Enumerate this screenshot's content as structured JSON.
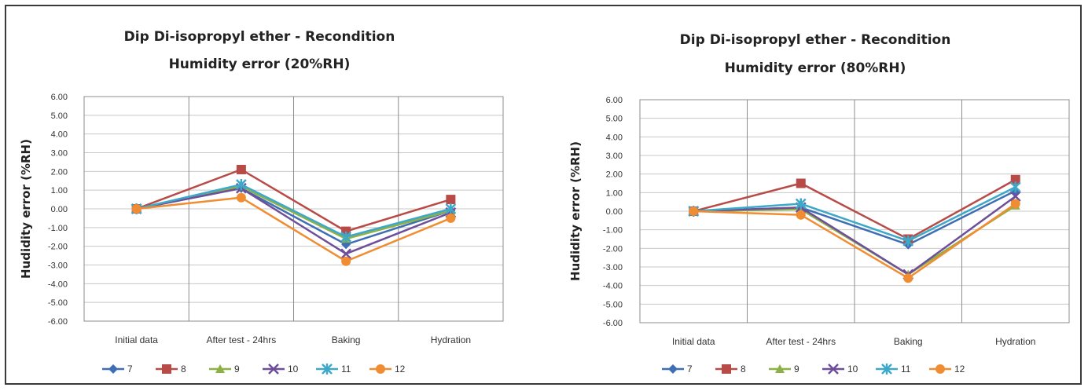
{
  "chart_data": [
    {
      "type": "line",
      "title_line1": "Dip Di-isopropyl ether  - Recondition",
      "title_line2": "Humidity error (20%RH)",
      "ylabel": "Hudidity error (%RH)",
      "xlabel": "",
      "ylim": [
        -6,
        6
      ],
      "yticks": [
        6,
        5,
        4,
        3,
        2,
        1,
        0,
        -1,
        -2,
        -3,
        -4,
        -5,
        -6
      ],
      "ytick_labels": [
        "6.00",
        "5.00",
        "4.00",
        "3.00",
        "2.00",
        "1.00",
        "0.00",
        "-1.00",
        "-2.00",
        "-3.00",
        "-4.00",
        "-5.00",
        "-6.00"
      ],
      "categories": [
        "Initial data",
        "After test - 24hrs",
        "Baking",
        "Hydration"
      ],
      "grid": true,
      "legend_position": "bottom",
      "series": [
        {
          "name": "7",
          "color": "#3F6EB5",
          "marker": "diamond",
          "values": [
            0,
            1.1,
            -1.9,
            -0.1
          ]
        },
        {
          "name": "8",
          "color": "#B84A47",
          "marker": "square",
          "values": [
            0,
            2.1,
            -1.2,
            0.5
          ]
        },
        {
          "name": "9",
          "color": "#8EB145",
          "marker": "triangle",
          "values": [
            0,
            1.2,
            -1.6,
            -0.1
          ]
        },
        {
          "name": "10",
          "color": "#6D4F9A",
          "marker": "x",
          "values": [
            0,
            1.1,
            -2.4,
            -0.2
          ]
        },
        {
          "name": "11",
          "color": "#3DA8C8",
          "marker": "star",
          "values": [
            0,
            1.3,
            -1.5,
            0.0
          ]
        },
        {
          "name": "12",
          "color": "#F08C32",
          "marker": "circle",
          "values": [
            0,
            0.6,
            -2.8,
            -0.5
          ]
        }
      ]
    },
    {
      "type": "line",
      "title_line1": "Dip Di-isopropyl ether  - Recondition",
      "title_line2": "Humidity error (80%RH)",
      "ylabel": "Hudidity error (%RH)",
      "xlabel": "",
      "ylim": [
        -6,
        6
      ],
      "yticks": [
        6,
        5,
        4,
        3,
        2,
        1,
        0,
        -1,
        -2,
        -3,
        -4,
        -5,
        -6
      ],
      "ytick_labels": [
        "6.00",
        "5.00",
        "4.00",
        "3.00",
        "2.00",
        "1.00",
        "0.00",
        "-1.00",
        "-2.00",
        "-3.00",
        "-4.00",
        "-5.00",
        "-6.00"
      ],
      "categories": [
        "Initial data",
        "After test - 24hrs",
        "Baking",
        "Hydration"
      ],
      "grid": true,
      "legend_position": "bottom",
      "series": [
        {
          "name": "7",
          "color": "#3F6EB5",
          "marker": "diamond",
          "values": [
            0,
            0.2,
            -1.8,
            1.1
          ]
        },
        {
          "name": "8",
          "color": "#B84A47",
          "marker": "square",
          "values": [
            0,
            1.5,
            -1.5,
            1.7
          ]
        },
        {
          "name": "9",
          "color": "#8EB145",
          "marker": "triangle",
          "values": [
            0,
            0.1,
            -3.4,
            0.3
          ]
        },
        {
          "name": "10",
          "color": "#6D4F9A",
          "marker": "x",
          "values": [
            0,
            0.2,
            -3.4,
            0.8
          ]
        },
        {
          "name": "11",
          "color": "#3DA8C8",
          "marker": "star",
          "values": [
            0,
            0.4,
            -1.6,
            1.3
          ]
        },
        {
          "name": "12",
          "color": "#F08C32",
          "marker": "circle",
          "values": [
            0,
            -0.2,
            -3.6,
            0.4
          ]
        }
      ]
    }
  ]
}
